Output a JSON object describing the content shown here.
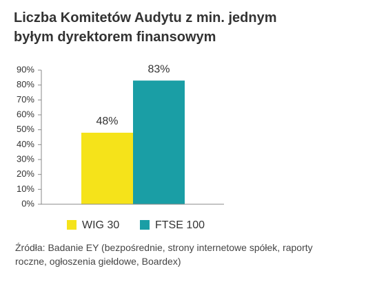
{
  "chart_data": {
    "type": "bar",
    "title": "Liczba Komitetów Audytu z min. jednym byłym dyrektorem finansowym",
    "categories": [
      null
    ],
    "series": [
      {
        "name": "WIG 30",
        "color": "#f5e31a",
        "values": [
          48
        ],
        "value_labels": [
          "48%"
        ]
      },
      {
        "name": "FTSE 100",
        "color": "#1a9ea5",
        "values": [
          83
        ],
        "value_labels": [
          "83%"
        ]
      }
    ],
    "ylim": [
      0,
      90
    ],
    "yticks": [
      {
        "value": 0,
        "label": "0%"
      },
      {
        "value": 10,
        "label": "10%"
      },
      {
        "value": 20,
        "label": "20%"
      },
      {
        "value": 30,
        "label": "30%"
      },
      {
        "value": 40,
        "label": "40%"
      },
      {
        "value": 50,
        "label": "50%"
      },
      {
        "value": 60,
        "label": "60%"
      },
      {
        "value": 70,
        "label": "70%"
      },
      {
        "value": 80,
        "label": "80%"
      },
      {
        "value": 90,
        "label": "90%"
      }
    ],
    "grid": false,
    "legend": "bottom",
    "source": "Źródła:  Badanie EY (bezpośrednie, strony internetowe spółek, raporty roczne, ogłoszenia giełdowe, Boardex)"
  }
}
